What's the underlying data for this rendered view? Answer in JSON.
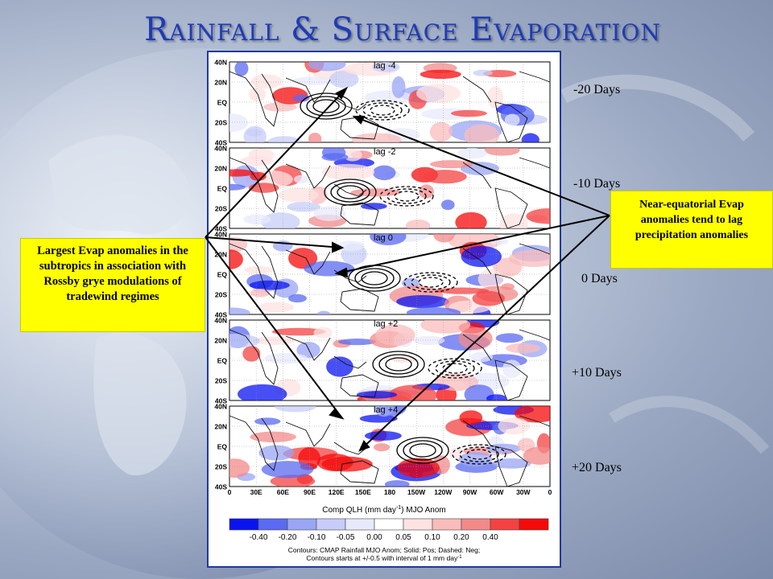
{
  "title": "Rainfall & Surface Evaporation",
  "panels": [
    {
      "lag_label": "lag -4",
      "days_label": "-20 Days"
    },
    {
      "lag_label": "lag -2",
      "days_label": "-10 Days"
    },
    {
      "lag_label": "lag 0",
      "days_label": "0 Days"
    },
    {
      "lag_label": "lag +2",
      "days_label": "+10 Days"
    },
    {
      "lag_label": "lag +4",
      "days_label": "+20 Days"
    }
  ],
  "lat_labels": [
    "40N",
    "20N",
    "EQ",
    "20S",
    "40S"
  ],
  "lon_labels": [
    "0",
    "30E",
    "60E",
    "90E",
    "120E",
    "150E",
    "180",
    "150W",
    "120W",
    "90W",
    "60W",
    "30W",
    "0"
  ],
  "colorbar": {
    "title": "Comp QLH (mm day",
    "title_sup": "-1",
    "title_suffix": ") MJO Anom",
    "ticks": [
      "-0.40",
      "-0.20",
      "-0.10",
      "-0.05",
      "0.00",
      "0.05",
      "0.10",
      "0.20",
      "0.40"
    ],
    "colors": [
      "#0a14f0",
      "#5a6af2",
      "#9aa5f5",
      "#c7cdf8",
      "#e8eafb",
      "#ffffff",
      "#fde2e2",
      "#f9bcbc",
      "#f38a8a",
      "#f44242",
      "#f50a0a"
    ]
  },
  "caption_line1": "Contours: CMAP Rainfall MJO Anom; Solid: Pos; Dashed: Neg;",
  "caption_line2a": "Contours starts at +/-0.5 with interval of 1 mm day",
  "caption_line2_sup": "-1",
  "callout_left": "Largest Evap anomalies in the subtropics in association with Rossby grye modulations of tradewind regimes",
  "callout_right": "Near-equatorial Evap anomalies tend to lag precipitation anomalies"
}
